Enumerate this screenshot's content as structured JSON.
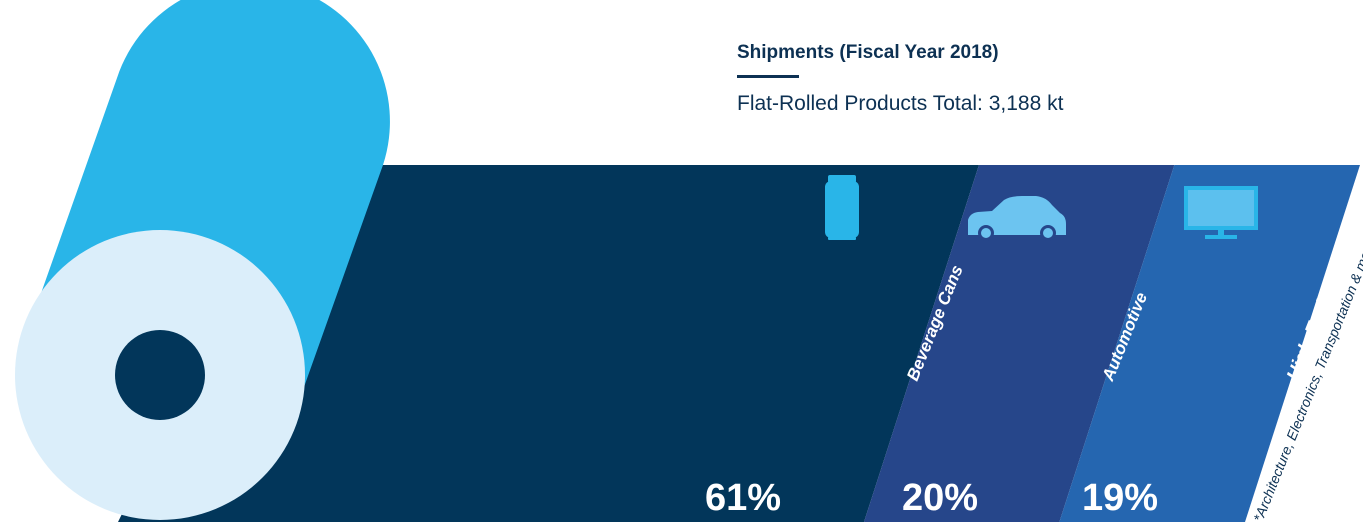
{
  "heading": "Shipments (Fiscal Year 2018)",
  "subheading": "Flat-Rolled Products Total: 3,188 kt",
  "footnote": "*Architecture, Electronics, Transportation & more",
  "icons": [
    "beverage-can-icon",
    "car-icon",
    "monitor-icon"
  ],
  "colors": {
    "roll_outer": "#29b5e8",
    "roll_face": "#dbeefa",
    "roll_core": "#02365a",
    "beverage_cans": "#02365a",
    "automotive": "#26468a",
    "high_end_specialties": "#2566b0",
    "icon_fill": "#29b5e8",
    "text_dark": "#0d3153"
  },
  "chart_data": {
    "type": "bar",
    "title": "Shipments (Fiscal Year 2018)",
    "subtitle": "Flat-Rolled Products Total: 3,188 kt",
    "unit": "%",
    "categories": [
      "Beverage Cans",
      "Automotive",
      "High-End Specialties*"
    ],
    "values": [
      61,
      20,
      19
    ],
    "value_labels": [
      "61%",
      "20%",
      "19%"
    ]
  }
}
